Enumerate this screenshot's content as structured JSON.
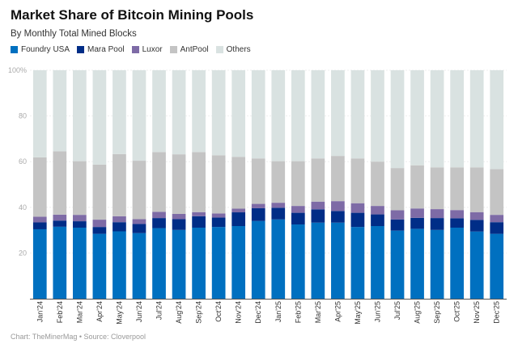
{
  "chart_data": {
    "type": "bar",
    "stacked": true,
    "title": "Market Share of Bitcoin Mining Pools",
    "subtitle": "By Monthly Total Mined Blocks",
    "xlabel": "",
    "ylabel": "",
    "ylim": [
      0,
      100
    ],
    "yticks": [
      "",
      "20",
      "40",
      "60",
      "80",
      "100%"
    ],
    "grid": true,
    "legend_placement": "top-left",
    "categories": [
      "Jan'24",
      "Feb'24",
      "Mar'24",
      "Apr'24",
      "May'24",
      "Jun'24",
      "Jul'24",
      "Aug'24",
      "Sep'24",
      "Oct'24",
      "Nov'24",
      "Dec'24",
      "Jan'25",
      "Feb'25",
      "Mar'25",
      "Apr'25",
      "May'25",
      "Jun'25",
      "Jul'25",
      "Aug'25",
      "Sep'25",
      "Oct'25",
      "Nov'25",
      "Dec'25"
    ],
    "series": [
      {
        "name": "Foundry USA",
        "color": "#0070C0",
        "values": [
          30.4,
          31.5,
          31.1,
          28.4,
          29.5,
          28.7,
          30.9,
          30.1,
          31.1,
          31.4,
          31.8,
          34.0,
          34.7,
          32.5,
          33.3,
          33.3,
          31.4,
          31.8,
          29.8,
          30.6,
          30.1,
          31.1,
          29.4,
          28.4
        ]
      },
      {
        "name": "Mara Pool",
        "color": "#002D87",
        "values": [
          3.0,
          2.7,
          2.8,
          3.0,
          4.0,
          4.0,
          4.4,
          4.7,
          5.0,
          4.1,
          6.0,
          5.6,
          5.1,
          5.1,
          5.8,
          5.1,
          6.2,
          5.1,
          4.9,
          4.8,
          5.2,
          4.1,
          5.1,
          5.1
        ]
      },
      {
        "name": "Luxor",
        "color": "#7E6BA6",
        "values": [
          2.5,
          2.6,
          2.8,
          3.2,
          2.6,
          2.1,
          2.7,
          2.3,
          1.8,
          1.8,
          1.6,
          1.9,
          2.2,
          3.0,
          3.4,
          4.3,
          4.2,
          3.7,
          4.0,
          4.1,
          3.9,
          3.6,
          3.4,
          3.2
        ]
      },
      {
        "name": "AntPool",
        "color": "#C4C4C4",
        "values": [
          26.0,
          27.7,
          23.5,
          24.1,
          27.2,
          25.6,
          26.2,
          26.1,
          26.3,
          25.5,
          22.7,
          19.9,
          18.2,
          19.6,
          18.9,
          19.8,
          19.6,
          19.4,
          18.5,
          18.9,
          18.3,
          18.7,
          19.6,
          20.0
        ]
      },
      {
        "name": "Others",
        "color": "#D9E2E1",
        "values": [
          38.1,
          35.5,
          39.8,
          41.3,
          36.7,
          39.6,
          35.8,
          36.8,
          35.8,
          37.2,
          37.9,
          38.6,
          39.8,
          39.8,
          38.6,
          37.5,
          38.6,
          40.0,
          42.8,
          41.6,
          42.5,
          42.5,
          42.5,
          43.3
        ]
      }
    ]
  },
  "footer": "Chart: TheMinerMag • Source: Cloverpool"
}
